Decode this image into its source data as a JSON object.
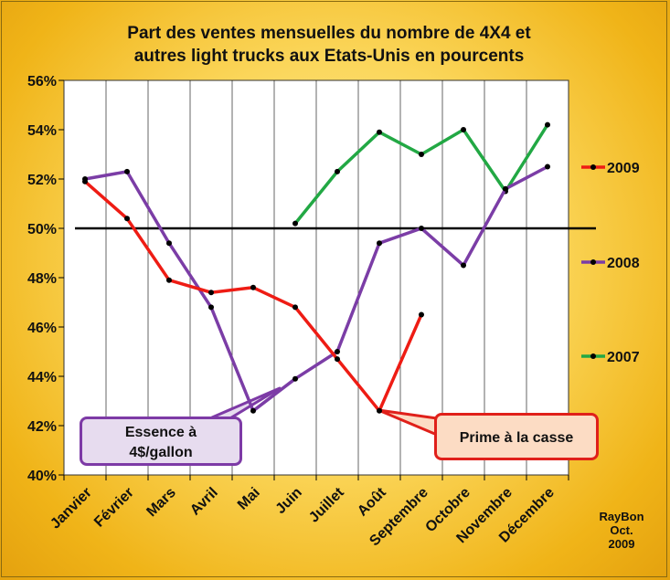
{
  "title_line1": "Part des ventes mensuelles du nombre de 4X4  et",
  "title_line2": "autres light trucks aux Etats-Unis  en pourcents",
  "credit": [
    "RayBon",
    "Oct.",
    "2009"
  ],
  "annotations": {
    "essence": [
      "Essence à",
      "4$/gallon"
    ],
    "prime": "Prime à la casse"
  },
  "colors": {
    "2009": "#ee1c14",
    "2008": "#7b3da6",
    "2007": "#22a844",
    "reference_line": "#000000",
    "plot_area": "#ffffff",
    "gridline": "#000000"
  },
  "chart_data": {
    "type": "line",
    "title": "Part des ventes mensuelles du nombre de 4X4  et autres light trucks aux Etats-Unis  en pourcents",
    "categories": [
      "Janvier",
      "Février",
      "Mars",
      "Avril",
      "Mai",
      "Juin",
      "Juillet",
      "Août",
      "Septembre",
      "Octobre",
      "Novembre",
      "Décembre"
    ],
    "ylim": [
      40,
      56
    ],
    "yticks": [
      "40%",
      "42%",
      "44%",
      "46%",
      "48%",
      "50%",
      "52%",
      "54%",
      "56%"
    ],
    "ytick_values": [
      40,
      42,
      44,
      46,
      48,
      50,
      52,
      54,
      56
    ],
    "reference_line": 50,
    "grid": true,
    "legend_position": "right",
    "series": [
      {
        "name": "2009",
        "values": [
          51.9,
          50.4,
          47.9,
          47.4,
          47.6,
          46.8,
          44.7,
          42.6,
          46.5,
          null,
          null,
          null
        ]
      },
      {
        "name": "2008",
        "values": [
          52.0,
          52.3,
          49.4,
          46.8,
          42.6,
          43.9,
          45.0,
          49.4,
          50.0,
          48.5,
          51.6,
          52.5
        ]
      },
      {
        "name": "2007",
        "values": [
          null,
          null,
          null,
          null,
          null,
          50.2,
          52.3,
          53.9,
          53.0,
          54.0,
          51.5,
          54.2
        ]
      }
    ]
  }
}
